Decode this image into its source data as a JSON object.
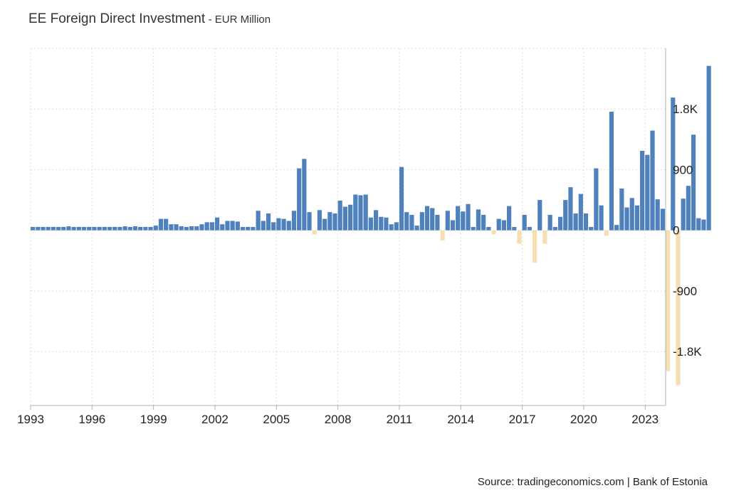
{
  "header": {
    "title": "EE Foreign Direct Investment",
    "unit": "- EUR Million"
  },
  "footer": {
    "source": "Source: tradingeconomics.com | Bank of Estonia"
  },
  "colors": {
    "positive": "#4f81bd",
    "negative": "#f5deb3",
    "grid": "#dcdcdc",
    "axis": "#b0b0b0"
  },
  "chart_data": {
    "type": "bar",
    "title": "EE Foreign Direct Investment",
    "ylabel": "EUR Million",
    "x_start": 1993.0,
    "x_step": 0.25,
    "xlim": [
      1993,
      2024.0
    ],
    "ylim": [
      -2600,
      2700
    ],
    "x_ticks": [
      "1993",
      "1996",
      "1999",
      "2002",
      "2005",
      "2008",
      "2011",
      "2014",
      "2017",
      "2020",
      "2023"
    ],
    "x_tick_values": [
      1993,
      1996,
      1999,
      2002,
      2005,
      2008,
      2011,
      2014,
      2017,
      2020,
      2023
    ],
    "y_ticks": [
      "-1.8K",
      "-900",
      "0",
      "900",
      "1.8K"
    ],
    "y_tick_values": [
      -1800,
      -900,
      0,
      900,
      1800
    ],
    "grid": true,
    "legend": "none",
    "values": [
      50,
      50,
      50,
      50,
      50,
      50,
      50,
      60,
      50,
      50,
      50,
      50,
      50,
      50,
      50,
      50,
      50,
      50,
      60,
      50,
      60,
      50,
      50,
      50,
      70,
      170,
      170,
      90,
      90,
      60,
      50,
      60,
      60,
      90,
      120,
      120,
      190,
      90,
      140,
      140,
      130,
      50,
      50,
      50,
      290,
      140,
      250,
      120,
      180,
      170,
      140,
      290,
      920,
      1060,
      270,
      -60,
      300,
      170,
      270,
      250,
      440,
      350,
      380,
      530,
      520,
      530,
      190,
      300,
      200,
      190,
      90,
      120,
      940,
      270,
      230,
      70,
      270,
      360,
      330,
      230,
      -150,
      290,
      150,
      360,
      280,
      390,
      50,
      310,
      230,
      50,
      -60,
      170,
      150,
      360,
      50,
      -200,
      230,
      50,
      -480,
      450,
      -200,
      230,
      50,
      200,
      450,
      640,
      250,
      540,
      250,
      50,
      920,
      370,
      -80,
      1760,
      80,
      620,
      340,
      480,
      370,
      1180,
      1120,
      1480,
      460,
      320,
      -2090,
      1970,
      -2300,
      470,
      660,
      1420,
      180,
      160,
      2440
    ]
  }
}
